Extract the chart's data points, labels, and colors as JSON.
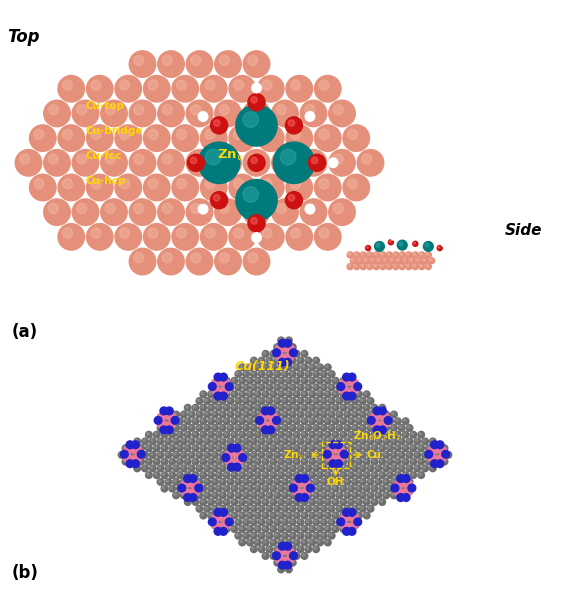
{
  "fig_width": 5.7,
  "fig_height": 6.03,
  "bg_color": "#ffffff",
  "panel_a_label": "(a)",
  "panel_b_label": "(b)",
  "top_label": "Top",
  "side_label": "Side",
  "cu_labels": [
    "Cu-top",
    "Cu-bridge",
    "Cu-fcc",
    "Cu-hcp"
  ],
  "znv_label": "Zn$_v$",
  "cu111_label": "Cu(111)",
  "formula_label": "Zn$_6$O$_7$H$_7$",
  "znv_arrow_label": "Zn$_v$",
  "cu_arrow_label": "Cu",
  "oh_label": "OH",
  "cu_color": "#E5907A",
  "cu_highlight": "#F4B8A5",
  "zn_color": "#007A7A",
  "zn_highlight": "#30AAAA",
  "o_color": "#CC1111",
  "h_color": "#FFFFFF",
  "h_edge": "#AAAAAA",
  "cu_gray": "#6E6E6E",
  "cu_gray_highlight": "#999999",
  "cluster_pink": "#EE7799",
  "cluster_blue": "#2222CC",
  "yellow_text": "#FFD700",
  "black_text": "#000000"
}
